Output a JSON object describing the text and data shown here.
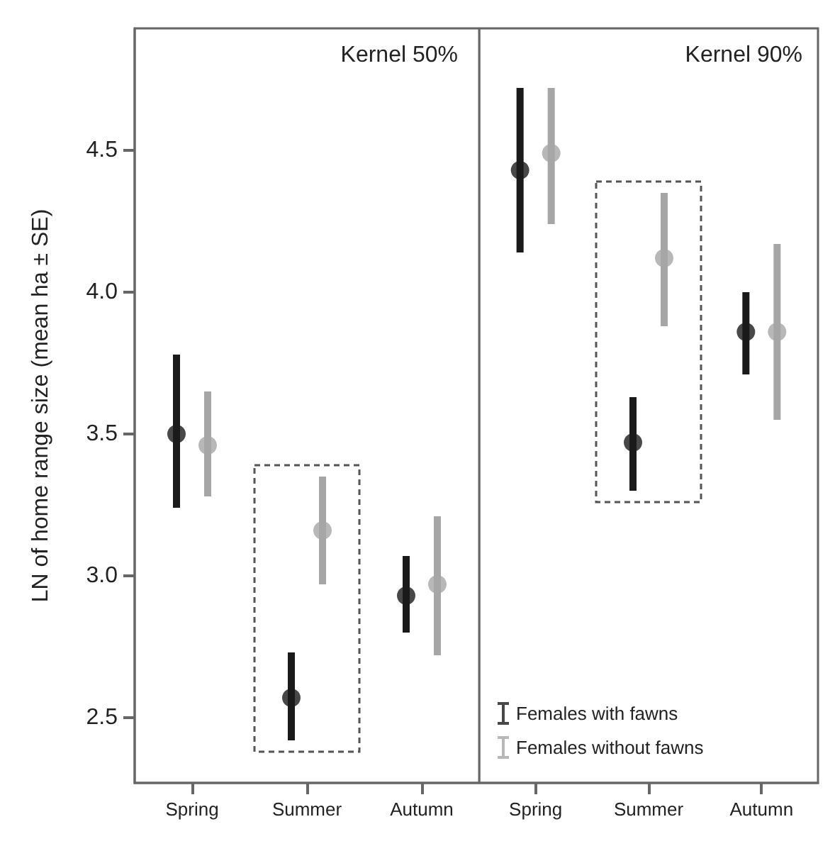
{
  "chart_data": [
    {
      "type": "scatter",
      "title": "Kernel 50%",
      "ylabel": "LN of home range size (mean ha ± SE)",
      "categories": [
        "Spring",
        "Summer",
        "Autumn"
      ],
      "ylim": [
        2.27,
        4.93
      ],
      "yticks": [
        2.5,
        {
          "value": 3,
          "label": "3.0"
        },
        3.5,
        {
          "value": 4,
          "label": "4.0"
        },
        4.5
      ],
      "marker": "circle",
      "grid": false,
      "legend": false,
      "series": [
        {
          "color": "#1a1a1a",
          "values": [
            3.5,
            2.57,
            2.93
          ],
          "errors": [
            [
              3.24,
              3.78
            ],
            [
              2.42,
              2.73
            ],
            [
              2.8,
              3.07
            ]
          ]
        },
        {
          "color": "#a6a6a6",
          "values": [
            3.46,
            3.16,
            2.97
          ],
          "errors": [
            [
              3.28,
              3.65
            ],
            [
              2.97,
              3.35
            ],
            [
              2.72,
              3.21
            ]
          ]
        }
      ]
    },
    {
      "type": "scatter",
      "title": "Kernel 90%",
      "categories": [
        "Spring",
        "Summer",
        "Autumn"
      ],
      "ylim": [
        2.27,
        4.93
      ],
      "tick_labels": "x",
      "marker": "circle",
      "grid": false,
      "legend": "bottom left",
      "series": [
        {
          "name": "Females with fawns",
          "color": "#1a1a1a",
          "values": [
            4.43,
            3.47,
            3.86
          ],
          "errors": [
            [
              4.14,
              4.72
            ],
            [
              3.3,
              3.63
            ],
            [
              3.71,
              4.0
            ]
          ]
        },
        {
          "name": "Females without fawns",
          "color": "#a6a6a6",
          "values": [
            4.49,
            4.12,
            3.86
          ],
          "errors": [
            [
              4.24,
              4.72
            ],
            [
              3.88,
              4.35
            ],
            [
              3.55,
              4.17
            ]
          ]
        }
      ]
    }
  ]
}
